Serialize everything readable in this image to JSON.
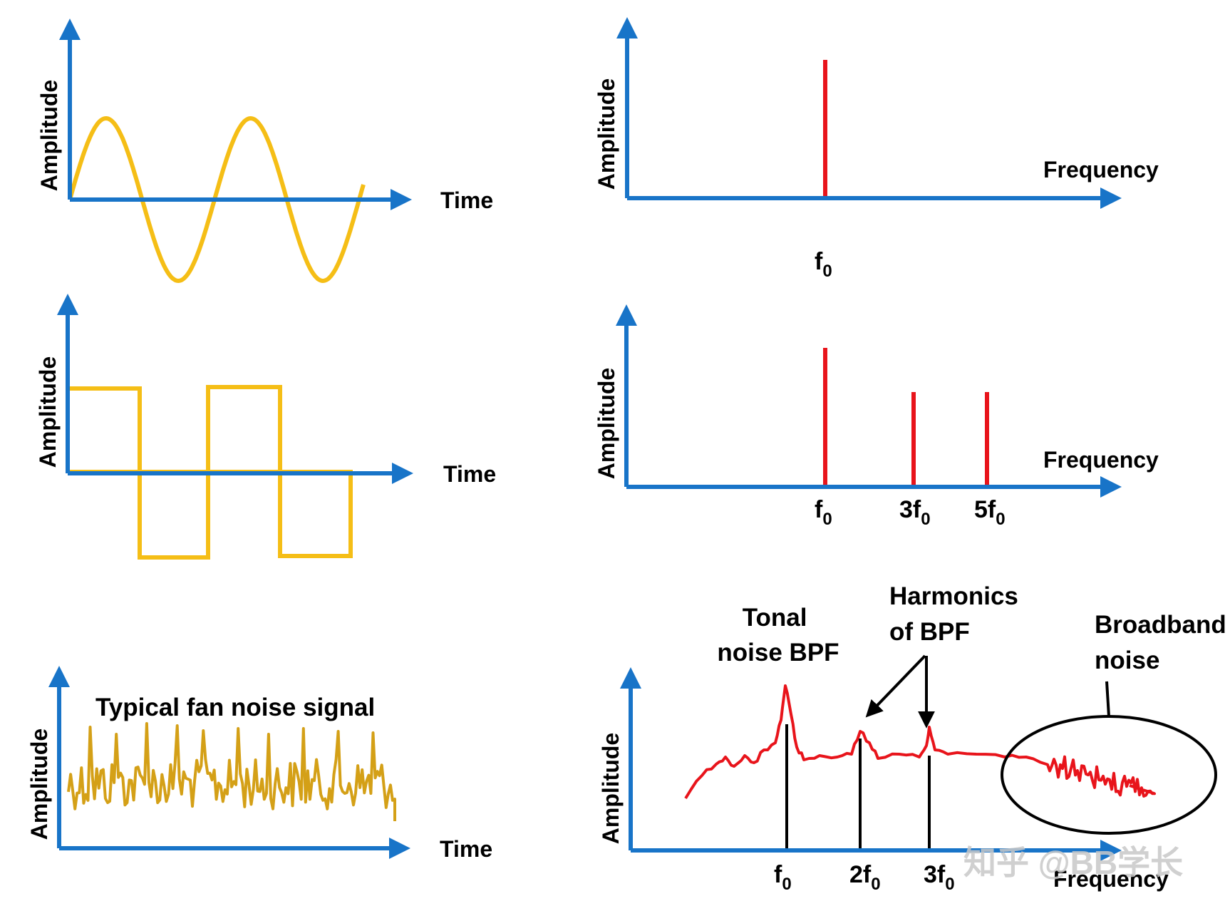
{
  "colors": {
    "axis": "#1874C8",
    "signal": "#F5BE16",
    "noise_signal": "#D4A017",
    "spectrum": "#E8141B",
    "annotation": "#000000",
    "watermark": "#C8C8C8"
  },
  "panels": {
    "sine_time": {
      "ylabel": "Amplitude",
      "xlabel": "Time"
    },
    "sine_spectrum": {
      "ylabel": "Amplitude",
      "xlabel": "Frequency",
      "ticks": [
        {
          "base": "f",
          "sub": "0"
        }
      ]
    },
    "square_time": {
      "ylabel": "Amplitude",
      "xlabel": "Time"
    },
    "square_spectrum": {
      "ylabel": "Amplitude",
      "xlabel": "Frequency",
      "ticks": [
        {
          "base": "f",
          "sub": "0"
        },
        {
          "base": "3f",
          "sub": "0"
        },
        {
          "base": "5f",
          "sub": "0"
        }
      ]
    },
    "noise_time": {
      "ylabel": "Amplitude",
      "xlabel": "Time",
      "title": "Typical fan noise signal"
    },
    "noise_spectrum": {
      "ylabel": "Amplitude",
      "xlabel": "Frequency",
      "ticks": [
        {
          "base": "f",
          "sub": "0"
        },
        {
          "base": "2f",
          "sub": "0"
        },
        {
          "base": "3f",
          "sub": "0"
        }
      ],
      "annotations": {
        "tonal_line1": "Tonal",
        "tonal_line2": "noise BPF",
        "harmonics_line1": "Harmonics",
        "harmonics_line2": "of BPF",
        "broadband_line1": "Broadband",
        "broadband_line2": "noise"
      }
    }
  },
  "watermark": "知乎 @BB学长"
}
